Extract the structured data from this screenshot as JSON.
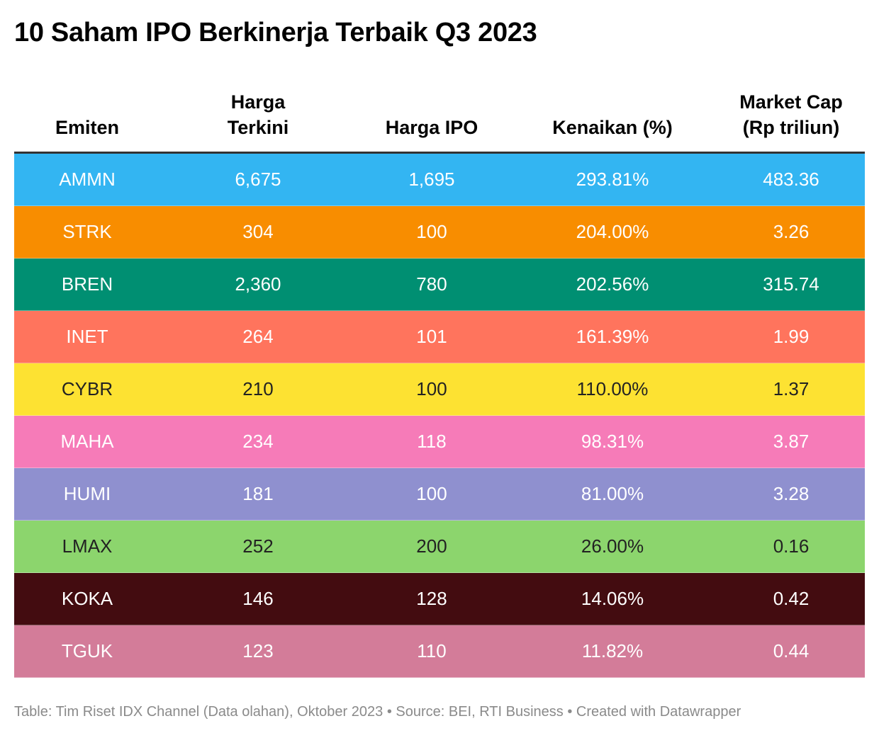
{
  "title": "10 Saham IPO Berkinerja Terbaik Q3 2023",
  "footer": "Table: Tim Riset IDX Channel (Data olahan), Oktober 2023 • Source: BEI, RTI Business • Created with Datawrapper",
  "chart_data": {
    "type": "table",
    "title": "10 Saham IPO Berkinerja Terbaik Q3 2023",
    "columns": [
      "Emiten",
      "Harga Terkini",
      "Harga IPO",
      "Kenaikan (%)",
      "Market Cap (Rp triliun)"
    ],
    "header_lines": [
      [
        "Emiten"
      ],
      [
        "Harga",
        "Terkini"
      ],
      [
        "Harga IPO"
      ],
      [
        "Kenaikan (%)"
      ],
      [
        "Market Cap",
        "(Rp triliun)"
      ]
    ],
    "rows": [
      {
        "emiten": "AMMN",
        "harga_terkini": "6,675",
        "harga_ipo": "1,695",
        "kenaikan": "293.81%",
        "market_cap": "483.36",
        "bg": "#33b5f2",
        "fg": "#ffffff"
      },
      {
        "emiten": "STRK",
        "harga_terkini": "304",
        "harga_ipo": "100",
        "kenaikan": "204.00%",
        "market_cap": "3.26",
        "bg": "#f88d00",
        "fg": "#ffffff"
      },
      {
        "emiten": "BREN",
        "harga_terkini": "2,360",
        "harga_ipo": "780",
        "kenaikan": "202.56%",
        "market_cap": "315.74",
        "bg": "#008f72",
        "fg": "#ffffff"
      },
      {
        "emiten": "INET",
        "harga_terkini": "264",
        "harga_ipo": "101",
        "kenaikan": "161.39%",
        "market_cap": "1.99",
        "bg": "#ff745d",
        "fg": "#ffffff"
      },
      {
        "emiten": "CYBR",
        "harga_terkini": "210",
        "harga_ipo": "100",
        "kenaikan": "110.00%",
        "market_cap": "1.37",
        "bg": "#fde232",
        "fg": "#222222"
      },
      {
        "emiten": "MAHA",
        "harga_terkini": "234",
        "harga_ipo": "118",
        "kenaikan": "98.31%",
        "market_cap": "3.87",
        "bg": "#f67bb8",
        "fg": "#ffffff"
      },
      {
        "emiten": "HUMI",
        "harga_terkini": "181",
        "harga_ipo": "100",
        "kenaikan": "81.00%",
        "market_cap": "3.28",
        "bg": "#8f90cf",
        "fg": "#ffffff"
      },
      {
        "emiten": "LMAX",
        "harga_terkini": "252",
        "harga_ipo": "200",
        "kenaikan": "26.00%",
        "market_cap": "0.16",
        "bg": "#8cd56d",
        "fg": "#222222"
      },
      {
        "emiten": "KOKA",
        "harga_terkini": "146",
        "harga_ipo": "128",
        "kenaikan": "14.06%",
        "market_cap": "0.42",
        "bg": "#430c10",
        "fg": "#ffffff"
      },
      {
        "emiten": "TGUK",
        "harga_terkini": "123",
        "harga_ipo": "110",
        "kenaikan": "11.82%",
        "market_cap": "0.44",
        "bg": "#d37c99",
        "fg": "#ffffff"
      }
    ]
  }
}
